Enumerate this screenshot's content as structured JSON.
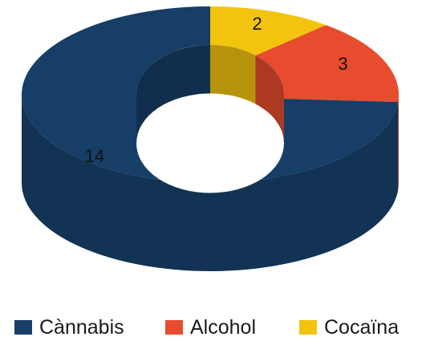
{
  "chart_data": {
    "type": "pie",
    "variant": "3d-donut",
    "title": "",
    "categories": [
      "Cànnabis",
      "Alcohol",
      "Cocaïna"
    ],
    "values": [
      14,
      3,
      2
    ],
    "data_labels": [
      "14",
      "3",
      "2"
    ],
    "colors": [
      "#163e66",
      "#e74c2e",
      "#f3c40e"
    ],
    "legend_position": "bottom"
  },
  "legend": {
    "items": [
      {
        "label": "Cànnabis",
        "color": "#163e66"
      },
      {
        "label": "Alcohol",
        "color": "#e74c2e"
      },
      {
        "label": "Cocaïna",
        "color": "#f3c40e"
      }
    ]
  }
}
